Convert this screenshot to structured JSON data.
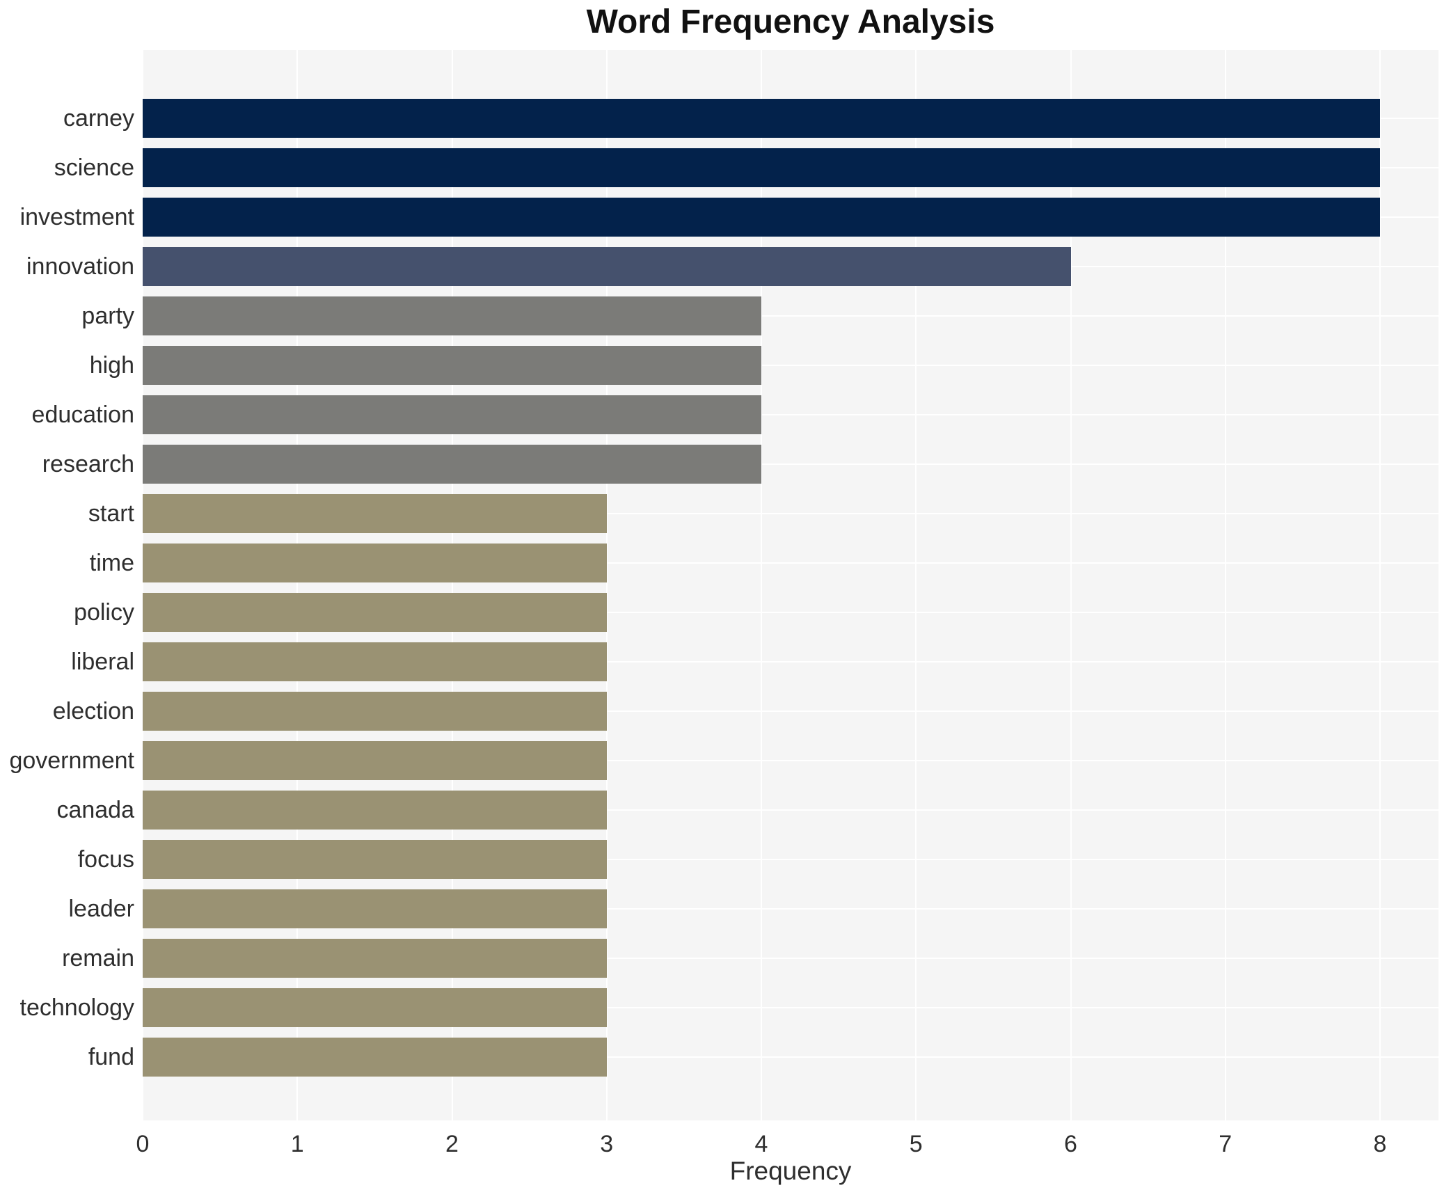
{
  "chart_data": {
    "type": "bar",
    "orientation": "horizontal",
    "title": "Word Frequency Analysis",
    "xlabel": "Frequency",
    "ylabel": "",
    "xlim": [
      0,
      8.38
    ],
    "xticks": [
      0,
      1,
      2,
      3,
      4,
      5,
      6,
      7,
      8
    ],
    "grid": {
      "vertical": true,
      "horizontal": true,
      "gridline_color": "#ffffff",
      "plot_background": "#f5f5f5"
    },
    "legend": null,
    "categories": [
      "carney",
      "science",
      "investment",
      "innovation",
      "party",
      "high",
      "education",
      "research",
      "start",
      "time",
      "policy",
      "liberal",
      "election",
      "government",
      "canada",
      "focus",
      "leader",
      "remain",
      "technology",
      "fund"
    ],
    "values": [
      8,
      8,
      8,
      6,
      4,
      4,
      4,
      4,
      3,
      3,
      3,
      3,
      3,
      3,
      3,
      3,
      3,
      3,
      3,
      3
    ],
    "color_by_value": {
      "8": "#03224b",
      "6": "#45516d",
      "4": "#7b7b78",
      "3": "#9a9273"
    },
    "bar_colors": [
      "#03224b",
      "#03224b",
      "#03224b",
      "#45516d",
      "#7b7b78",
      "#7b7b78",
      "#7b7b78",
      "#7b7b78",
      "#9a9273",
      "#9a9273",
      "#9a9273",
      "#9a9273",
      "#9a9273",
      "#9a9273",
      "#9a9273",
      "#9a9273",
      "#9a9273",
      "#9a9273",
      "#9a9273",
      "#9a9273"
    ],
    "text_colors": {
      "title": "#111111",
      "tick_labels": "#2e2e2e"
    }
  }
}
